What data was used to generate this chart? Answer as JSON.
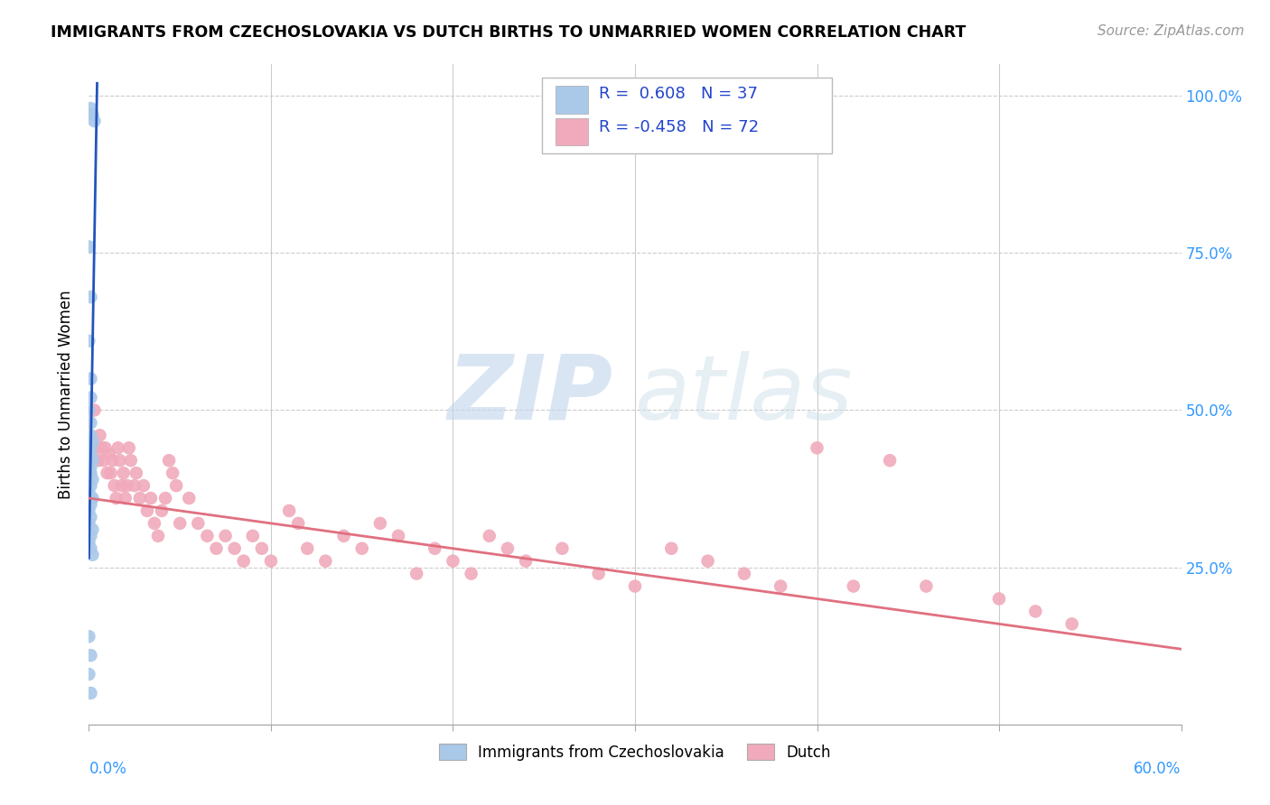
{
  "title": "IMMIGRANTS FROM CZECHOSLOVAKIA VS DUTCH BIRTHS TO UNMARRIED WOMEN CORRELATION CHART",
  "source": "Source: ZipAtlas.com",
  "ylabel": "Births to Unmarried Women",
  "xlim": [
    0.0,
    0.6
  ],
  "ylim": [
    0.0,
    1.05
  ],
  "blue_color": "#aac8e8",
  "pink_color": "#f0aabb",
  "blue_line_color": "#2255bb",
  "pink_line_color": "#e07080",
  "blue_scatter": [
    [
      0.001,
      0.98
    ],
    [
      0.002,
      0.97
    ],
    [
      0.003,
      0.96
    ],
    [
      0.0,
      0.76
    ],
    [
      0.001,
      0.68
    ],
    [
      0.0,
      0.61
    ],
    [
      0.001,
      0.55
    ],
    [
      0.001,
      0.52
    ],
    [
      0.0,
      0.5
    ],
    [
      0.001,
      0.48
    ],
    [
      0.001,
      0.46
    ],
    [
      0.002,
      0.45
    ],
    [
      0.001,
      0.44
    ],
    [
      0.001,
      0.43
    ],
    [
      0.0,
      0.43
    ],
    [
      0.002,
      0.42
    ],
    [
      0.001,
      0.41
    ],
    [
      0.0,
      0.4
    ],
    [
      0.001,
      0.4
    ],
    [
      0.002,
      0.39
    ],
    [
      0.001,
      0.38
    ],
    [
      0.0,
      0.37
    ],
    [
      0.001,
      0.36
    ],
    [
      0.002,
      0.36
    ],
    [
      0.001,
      0.35
    ],
    [
      0.0,
      0.34
    ],
    [
      0.001,
      0.33
    ],
    [
      0.0,
      0.32
    ],
    [
      0.002,
      0.31
    ],
    [
      0.001,
      0.3
    ],
    [
      0.0,
      0.29
    ],
    [
      0.001,
      0.28
    ],
    [
      0.002,
      0.27
    ],
    [
      0.0,
      0.14
    ],
    [
      0.001,
      0.11
    ],
    [
      0.0,
      0.08
    ],
    [
      0.001,
      0.05
    ]
  ],
  "pink_scatter": [
    [
      0.003,
      0.5
    ],
    [
      0.004,
      0.44
    ],
    [
      0.005,
      0.42
    ],
    [
      0.006,
      0.46
    ],
    [
      0.007,
      0.44
    ],
    [
      0.008,
      0.42
    ],
    [
      0.009,
      0.44
    ],
    [
      0.01,
      0.4
    ],
    [
      0.011,
      0.43
    ],
    [
      0.012,
      0.4
    ],
    [
      0.013,
      0.42
    ],
    [
      0.014,
      0.38
    ],
    [
      0.015,
      0.36
    ],
    [
      0.016,
      0.44
    ],
    [
      0.017,
      0.42
    ],
    [
      0.018,
      0.38
    ],
    [
      0.019,
      0.4
    ],
    [
      0.02,
      0.36
    ],
    [
      0.021,
      0.38
    ],
    [
      0.022,
      0.44
    ],
    [
      0.023,
      0.42
    ],
    [
      0.025,
      0.38
    ],
    [
      0.026,
      0.4
    ],
    [
      0.028,
      0.36
    ],
    [
      0.03,
      0.38
    ],
    [
      0.032,
      0.34
    ],
    [
      0.034,
      0.36
    ],
    [
      0.036,
      0.32
    ],
    [
      0.038,
      0.3
    ],
    [
      0.04,
      0.34
    ],
    [
      0.042,
      0.36
    ],
    [
      0.044,
      0.42
    ],
    [
      0.046,
      0.4
    ],
    [
      0.048,
      0.38
    ],
    [
      0.05,
      0.32
    ],
    [
      0.055,
      0.36
    ],
    [
      0.06,
      0.32
    ],
    [
      0.065,
      0.3
    ],
    [
      0.07,
      0.28
    ],
    [
      0.075,
      0.3
    ],
    [
      0.08,
      0.28
    ],
    [
      0.085,
      0.26
    ],
    [
      0.09,
      0.3
    ],
    [
      0.095,
      0.28
    ],
    [
      0.1,
      0.26
    ],
    [
      0.11,
      0.34
    ],
    [
      0.115,
      0.32
    ],
    [
      0.12,
      0.28
    ],
    [
      0.13,
      0.26
    ],
    [
      0.14,
      0.3
    ],
    [
      0.15,
      0.28
    ],
    [
      0.16,
      0.32
    ],
    [
      0.17,
      0.3
    ],
    [
      0.18,
      0.24
    ],
    [
      0.19,
      0.28
    ],
    [
      0.2,
      0.26
    ],
    [
      0.21,
      0.24
    ],
    [
      0.22,
      0.3
    ],
    [
      0.23,
      0.28
    ],
    [
      0.24,
      0.26
    ],
    [
      0.26,
      0.28
    ],
    [
      0.28,
      0.24
    ],
    [
      0.3,
      0.22
    ],
    [
      0.32,
      0.28
    ],
    [
      0.34,
      0.26
    ],
    [
      0.36,
      0.24
    ],
    [
      0.38,
      0.22
    ],
    [
      0.4,
      0.44
    ],
    [
      0.42,
      0.22
    ],
    [
      0.44,
      0.42
    ],
    [
      0.46,
      0.22
    ],
    [
      0.5,
      0.2
    ],
    [
      0.52,
      0.18
    ],
    [
      0.54,
      0.16
    ]
  ],
  "blue_trend_x": [
    0.0,
    0.0045
  ],
  "blue_trend_y": [
    0.265,
    1.02
  ],
  "pink_trend_x": [
    0.0,
    0.6
  ],
  "pink_trend_y": [
    0.36,
    0.12
  ],
  "watermark_zip": "ZIP",
  "watermark_atlas": "atlas",
  "background_color": "#ffffff",
  "grid_color": "#cccccc",
  "title_fontsize": 12.5,
  "source_fontsize": 11,
  "scatter_size": 110
}
